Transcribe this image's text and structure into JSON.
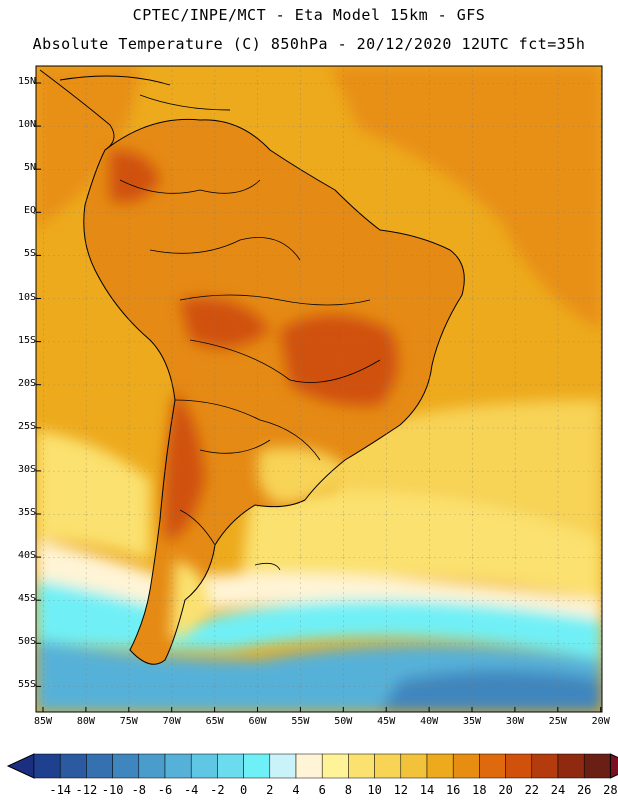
{
  "header": {
    "line1": "CPTEC/INPE/MCT -  Eta Model 15km - GFS",
    "line2": "Absolute Temperature (C) 850hPa - 20/12/2020 12UTC fct=35h"
  },
  "axes": {
    "lat_labels": [
      "15N",
      "10N",
      "5N",
      "EQ",
      "5S",
      "10S",
      "15S",
      "20S",
      "25S",
      "30S",
      "35S",
      "40S",
      "45S",
      "50S",
      "55S"
    ],
    "lon_labels": [
      "85W",
      "80W",
      "75W",
      "70W",
      "65W",
      "60W",
      "55W",
      "50W",
      "45W",
      "40W",
      "35W",
      "30W",
      "25W",
      "20W"
    ]
  },
  "colorbar": {
    "ticks": [
      "-14",
      "-12",
      "-10",
      "-8",
      "-6",
      "-4",
      "-2",
      "0",
      "2",
      "4",
      "6",
      "8",
      "10",
      "12",
      "14",
      "16",
      "18",
      "20",
      "22",
      "24",
      "26",
      "28"
    ],
    "colors": [
      "#1f3f8f",
      "#2b5aa0",
      "#3571b0",
      "#3f86be",
      "#4a9ccb",
      "#56b1d8",
      "#5fc6e3",
      "#6bdced",
      "#6ff0f6",
      "#c9f3f8",
      "#fff4d6",
      "#fff39a",
      "#fbe16f",
      "#f7d356",
      "#f2c23a",
      "#ecaa1c",
      "#e78d12",
      "#df6a0d",
      "#d0510b",
      "#b43b0d",
      "#8f2a10",
      "#6a1f14"
    ],
    "low_arrow_color": "#1b2e80",
    "high_arrow_color": "#7a1020"
  },
  "map_colors": {
    "ocean_warm": "#edaa1d",
    "ocean_north": "#e88f14",
    "land_base": "#e58a14",
    "land_hot": "#d0510b",
    "cool_yellow": "#f7d356",
    "pale": "#fbe16f",
    "cream": "#fff4d6",
    "light_cyan": "#c9f3f8",
    "cyan": "#6ff0f6",
    "blue_cyan": "#56b1d8",
    "deep_blue": "#3f86be"
  }
}
